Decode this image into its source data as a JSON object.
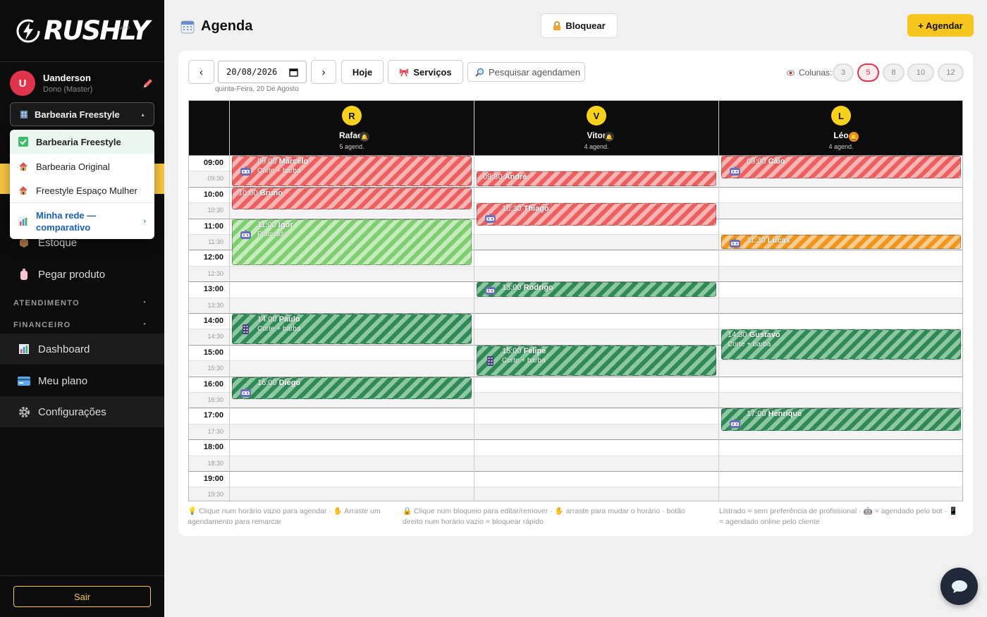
{
  "brand": {
    "logo_text": "RUSHLY",
    "logo_sub": "APP"
  },
  "user": {
    "initial": "U",
    "name": "Uanderson",
    "role": "Dono (Master)"
  },
  "shop_selector": {
    "current": "Barbearia Freestyle"
  },
  "shop_dropdown": {
    "items": [
      {
        "label": "Barbearia Freestyle",
        "selected": true
      },
      {
        "label": "Barbearia Original",
        "selected": false
      },
      {
        "label": "Freestyle Espaço Mulher",
        "selected": false
      }
    ],
    "network": "Minha rede — comparativo"
  },
  "nav": {
    "estoque": "Estoque",
    "pegar_produto": "Pegar produto",
    "atendimento": "ATENDIMENTO",
    "financeiro": "FINANCEIRO",
    "dashboard": "Dashboard",
    "meu_plano": "Meu plano",
    "configuracoes": "Configurações",
    "sair": "Sair"
  },
  "header": {
    "title": "Agenda",
    "bloquear": "Bloquear",
    "agendar": "+ Agendar"
  },
  "toolbar": {
    "prev": "‹",
    "date": "20/08/2026",
    "next": "›",
    "today": "Hoje",
    "services": "Serviços",
    "search_placeholder": "Pesquisar agendamen",
    "date_caption": "quinta-Feira, 20 De Agosto",
    "columns_label": "Colunas:",
    "column_options": [
      "3",
      "5",
      "8",
      "10",
      "12"
    ],
    "columns_selected": "5"
  },
  "professionals": [
    {
      "initial": "R",
      "name": "Rafael",
      "count": "5 agend."
    },
    {
      "initial": "V",
      "name": "Vitor",
      "count": "4 agend."
    },
    {
      "initial": "L",
      "name": "Léo",
      "count": "4 agend."
    }
  ],
  "time_slots": [
    "09:00",
    "09:30",
    "10:00",
    "10:30",
    "11:00",
    "11:30",
    "12:00",
    "12:30",
    "13:00",
    "13:30",
    "14:00",
    "14:30",
    "15:00",
    "15:30",
    "16:00",
    "16:30",
    "17:00",
    "17:30",
    "18:00",
    "18:30",
    "19:00",
    "19:30"
  ],
  "appointments": [
    {
      "col": 0,
      "time": "09:00",
      "client": "Marcelo",
      "service": "Corte + barba",
      "slots": 2,
      "color": "red",
      "icon": "robot-icon"
    },
    {
      "col": 0,
      "time": "10:00",
      "client": "Bruno",
      "service": "",
      "slots": 1.5,
      "color": "red",
      "icon": ""
    },
    {
      "col": 0,
      "time": "11:00",
      "client": "Igor",
      "service": "Platinado",
      "slots": 3,
      "color": "lgreen",
      "icon": "robot-icon"
    },
    {
      "col": 0,
      "time": "14:00",
      "client": "Paulo",
      "service": "Corte + barba",
      "slots": 2,
      "color": "green",
      "icon": "phone-icon"
    },
    {
      "col": 0,
      "time": "16:00",
      "client": "Diego",
      "service": "",
      "slots": 1.5,
      "color": "green",
      "icon": "robot-icon"
    },
    {
      "col": 1,
      "time": "09:30",
      "client": "André",
      "service": "",
      "slots": 1,
      "color": "red",
      "icon": ""
    },
    {
      "col": 1,
      "time": "10:30",
      "client": "Thiago",
      "service": "",
      "slots": 1.5,
      "color": "red",
      "icon": "robot-icon"
    },
    {
      "col": 1,
      "time": "13:00",
      "client": "Rodrigo",
      "service": "",
      "slots": 1,
      "color": "green",
      "icon": "robot-icon"
    },
    {
      "col": 1,
      "time": "15:00",
      "client": "Felipe",
      "service": "Corte + barba",
      "slots": 2,
      "color": "green",
      "icon": "phone-icon"
    },
    {
      "col": 2,
      "time": "09:00",
      "client": "Caio",
      "service": "",
      "slots": 1.5,
      "color": "red",
      "icon": "robot-icon"
    },
    {
      "col": 2,
      "time": "11:30",
      "client": "Lucas",
      "service": "",
      "slots": 1,
      "color": "orange",
      "icon": "robot-icon"
    },
    {
      "col": 2,
      "time": "14:30",
      "client": "Gustavo",
      "service": "Corte + barba",
      "slots": 2,
      "color": "green",
      "icon": ""
    },
    {
      "col": 2,
      "time": "17:00",
      "client": "Henrique",
      "service": "",
      "slots": 1.5,
      "color": "green",
      "icon": "robot-icon"
    }
  ],
  "footer": {
    "hint1": "💡 Clique num horário vazio para agendar · ✋ Arraste um agendamento para remarcar",
    "hint2": "🔒 Clique num bloqueio para editar/remover · ✋ arraste para mudar o horário · botão direito num horário vazio = bloquear rápido",
    "hint3": "Listrado = sem preferência de profissional · 🤖 = agendado pelo bot · 📱 = agendado online pelo cliente"
  },
  "colors": {
    "accent": "#f7c61c",
    "danger": "#e0334c",
    "sidebar": "#0c0c0c"
  }
}
